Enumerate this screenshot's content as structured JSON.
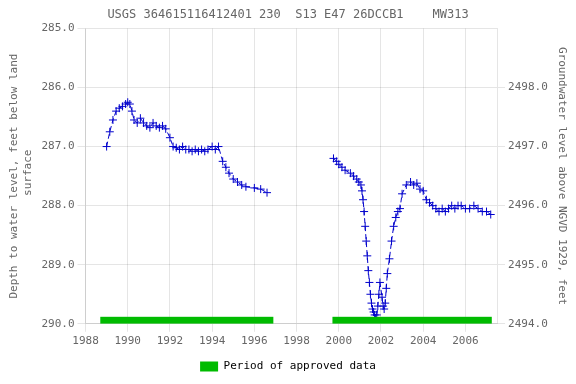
{
  "chart_data": {
    "type": "line",
    "title": "USGS 364615116412401 230  S13 E47 26DCCB1    MW313",
    "y_label": "Depth to water level, feet below land\n surface",
    "y2_label": "Groundwater level above NGVD 1929, feet",
    "xlim": [
      1988,
      2007.5
    ],
    "xticks": [
      1988,
      1990,
      1992,
      1994,
      1996,
      1998,
      2000,
      2002,
      2004,
      2006
    ],
    "ylim": [
      290.0,
      285.0
    ],
    "yticks": [
      {
        "value": 285,
        "label": "285.0"
      },
      {
        "value": 286,
        "label": "286.0"
      },
      {
        "value": 287,
        "label": "287.0"
      },
      {
        "value": 288,
        "label": "288.0"
      },
      {
        "value": 289,
        "label": "289.0"
      },
      {
        "value": 290,
        "label": "290.0"
      }
    ],
    "y2lim": [
      2494.0,
      2499.0
    ],
    "y2ticks": [
      {
        "value": 2494,
        "label": "2494.0"
      },
      {
        "value": 2495,
        "label": "2495.0"
      },
      {
        "value": 2496,
        "label": "2496.0"
      },
      {
        "value": 2497,
        "label": "2497.0"
      },
      {
        "value": 2498,
        "label": "2498.0"
      }
    ],
    "grid": true,
    "legend": "bottom",
    "series": [
      {
        "color": "#0000cc",
        "line_style": "dashed",
        "marker": "+",
        "x": [
          1989.0,
          1989.15,
          1989.3,
          1989.45,
          1989.6,
          1989.75,
          1989.9,
          1990.0,
          1990.1,
          1990.2,
          1990.3,
          1990.45,
          1990.6,
          1990.75,
          1990.9,
          1991.05,
          1991.2,
          1991.35,
          1991.5,
          1991.65,
          1991.8,
          1992.0,
          1992.15,
          1992.3,
          1992.45,
          1992.6,
          1992.75,
          1992.9,
          1993.05,
          1993.2,
          1993.35,
          1993.5,
          1993.65,
          1993.8,
          1994.0,
          1994.15,
          1994.3,
          1994.5,
          1994.65,
          1994.8,
          1995.0,
          1995.2,
          1995.4,
          1995.6,
          1996.0,
          1996.3,
          1996.6
        ],
        "values": [
          287.0,
          286.75,
          286.55,
          286.4,
          286.35,
          286.32,
          286.28,
          286.25,
          286.28,
          286.4,
          286.55,
          286.6,
          286.52,
          286.6,
          286.65,
          286.68,
          286.6,
          286.65,
          286.68,
          286.65,
          286.7,
          286.85,
          287.0,
          287.02,
          287.05,
          287.0,
          287.05,
          287.05,
          287.08,
          287.05,
          287.08,
          287.05,
          287.08,
          287.05,
          287.0,
          287.05,
          287.0,
          287.25,
          287.35,
          287.45,
          287.55,
          287.6,
          287.65,
          287.68,
          287.7,
          287.72,
          287.78
        ]
      },
      {
        "color": "#0000cc",
        "line_style": "dashed",
        "marker": "+",
        "x": [
          1999.75,
          1999.9,
          2000.0,
          2000.15,
          2000.3,
          2000.55,
          2000.7,
          2000.85,
          2000.95,
          2001.05,
          2001.1,
          2001.15,
          2001.2,
          2001.25,
          2001.3,
          2001.35,
          2001.4,
          2001.45,
          2001.5,
          2001.55,
          2001.6,
          2001.65,
          2001.7,
          2001.75,
          2001.8,
          2001.85,
          2001.9,
          2001.95,
          2002.05,
          2002.1,
          2002.15,
          2002.2,
          2002.25,
          2002.3,
          2002.4,
          2002.5,
          2002.6,
          2002.7,
          2002.8,
          2002.9,
          2003.0,
          2003.2,
          2003.4,
          2003.55,
          2003.7,
          2003.85,
          2004.0,
          2004.15,
          2004.3,
          2004.45,
          2004.6,
          2004.75,
          2004.9,
          2005.05,
          2005.2,
          2005.35,
          2005.5,
          2005.65,
          2005.8,
          2006.0,
          2006.2,
          2006.4,
          2006.6,
          2006.8,
          2007.0,
          2007.2
        ],
        "values": [
          287.2,
          287.25,
          287.3,
          287.35,
          287.4,
          287.45,
          287.5,
          287.55,
          287.6,
          287.65,
          287.75,
          287.9,
          288.1,
          288.35,
          288.6,
          288.85,
          289.1,
          289.3,
          289.5,
          289.65,
          289.75,
          289.8,
          289.85,
          289.9,
          289.85,
          289.7,
          289.5,
          289.3,
          289.55,
          289.7,
          289.75,
          289.65,
          289.4,
          289.15,
          288.9,
          288.6,
          288.35,
          288.2,
          288.1,
          288.05,
          287.8,
          287.65,
          287.6,
          287.65,
          287.62,
          287.72,
          287.75,
          287.9,
          287.95,
          288.0,
          288.05,
          288.1,
          288.05,
          288.1,
          288.05,
          288.0,
          288.05,
          288.0,
          288.0,
          288.05,
          288.05,
          288.0,
          288.05,
          288.1,
          288.1,
          288.15
        ]
      }
    ],
    "approved_periods": {
      "name": "Period of approved data",
      "color": "#00bb00",
      "periods": [
        [
          1988.7,
          1996.9
        ],
        [
          1999.7,
          2007.25
        ]
      ]
    }
  }
}
